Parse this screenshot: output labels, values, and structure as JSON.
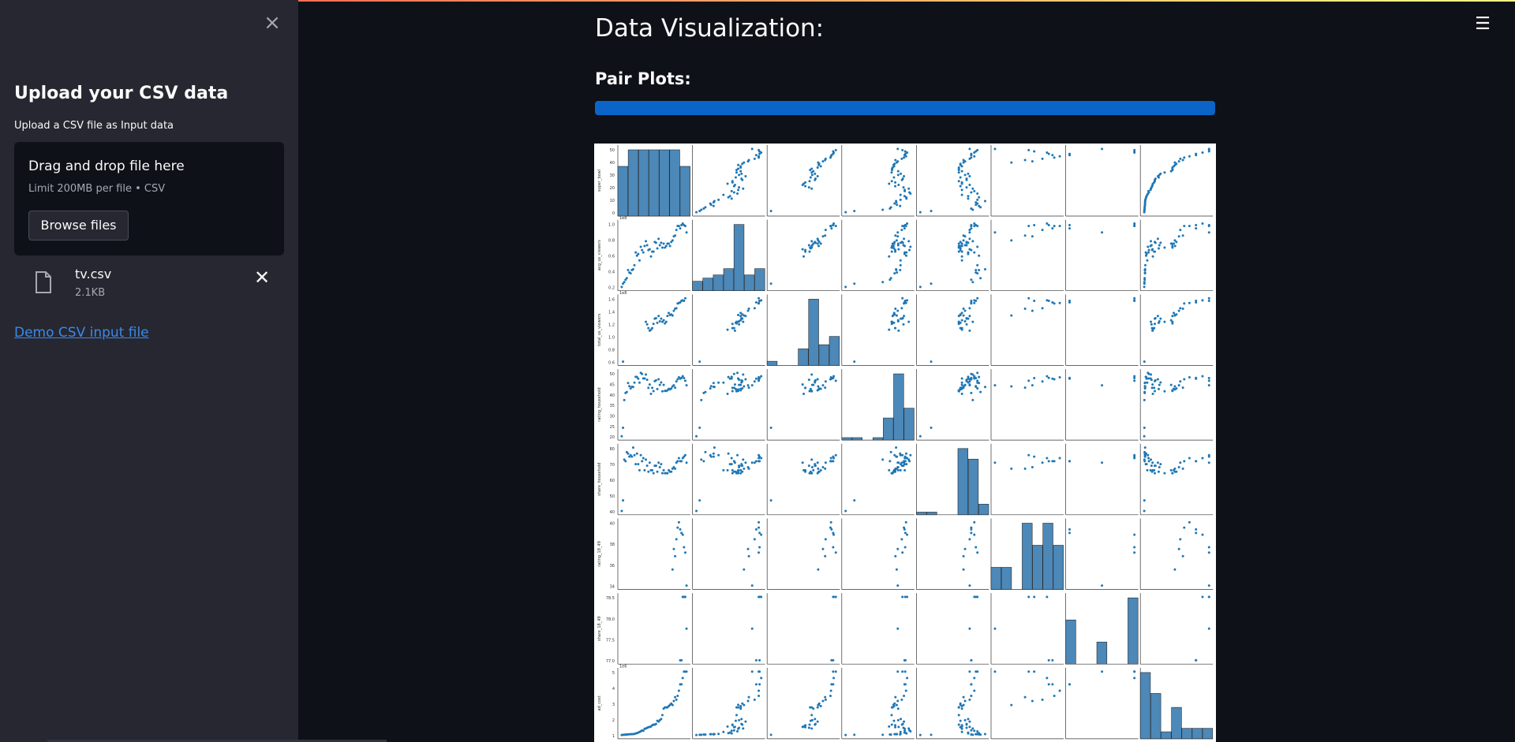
{
  "sidebar": {
    "title": "Upload your CSV data",
    "subtitle": "Upload a CSV file as Input data",
    "dropzone": {
      "title": "Drag and drop file here",
      "limit": "Limit 200MB per file • CSV",
      "browse_label": "Browse files"
    },
    "file": {
      "name": "tv.csv",
      "size": "2.1KB"
    },
    "demo_link": "Demo CSV input file",
    "close_icon": "close-icon",
    "file_icon": "file-icon",
    "remove_icon": "close-icon"
  },
  "header": {
    "menu_icon": "hamburger-menu-icon"
  },
  "main": {
    "title": "Data Visualization:",
    "subheader": "Pair Plots:",
    "progress": 1.0
  },
  "colors": {
    "app_bg": "#0e1117",
    "sidebar_bg": "#262730",
    "progress": "#0b65c8",
    "link": "#3c89e8",
    "plot_points": "#1f77b4"
  },
  "chart_data": {
    "type": "scatter",
    "title": "",
    "subtype": "pairplot",
    "variables": [
      "super_bowl",
      "avg_us_viewers",
      "total_us_viewers",
      "rating_household",
      "share_household",
      "rating_18_49",
      "share_18_49",
      "ad_cost"
    ],
    "y_ticks": [
      [
        "0",
        "10",
        "20",
        "30",
        "40",
        "50"
      ],
      [
        "0.2",
        "0.4",
        "0.6",
        "0.8",
        "1.0"
      ],
      [
        "0.6",
        "0.8",
        "1.0",
        "1.2",
        "1.4",
        "1.6"
      ],
      [
        "20",
        "25",
        "30",
        "35",
        "40",
        "45",
        "50"
      ],
      [
        "40",
        "50",
        "60",
        "70",
        "80"
      ],
      [
        "34",
        "36",
        "38",
        "40"
      ],
      [
        "77.0",
        "77.5",
        "78.0",
        "78.5"
      ],
      [
        "1",
        "2",
        "3",
        "4",
        "5"
      ]
    ],
    "y_offsets": [
      "",
      "1e8",
      "1e8",
      "",
      "",
      "",
      "",
      "1e6"
    ],
    "data": [
      [
        1,
        35000000.0,
        null,
        18.5,
        36,
        null,
        null,
        42500
      ],
      [
        2,
        39000000.0,
        51000000.0,
        22.6,
        43,
        null,
        null,
        54500
      ],
      [
        3,
        41000000.0,
        null,
        36,
        70,
        null,
        null,
        55000
      ],
      [
        4,
        44000000.0,
        null,
        39.4,
        69,
        null,
        null,
        78200
      ],
      [
        5,
        46000000.0,
        null,
        39.9,
        75,
        null,
        null,
        72500
      ],
      [
        6,
        56000000.0,
        null,
        44.2,
        74,
        null,
        null,
        86100
      ],
      [
        7,
        53000000.0,
        null,
        42.7,
        72,
        null,
        null,
        103500
      ],
      [
        8,
        52000000.0,
        null,
        41.6,
        73,
        null,
        null,
        103500
      ],
      [
        9,
        56000000.0,
        null,
        42.4,
        72,
        null,
        null,
        107000
      ],
      [
        10,
        57000000.0,
        null,
        42.3,
        78,
        null,
        null,
        110000
      ],
      [
        11,
        62000000.0,
        null,
        44.4,
        73,
        null,
        null,
        125000
      ],
      [
        12,
        78000000.0,
        null,
        47.2,
        67,
        null,
        null,
        162300
      ],
      [
        13,
        74000000.0,
        null,
        47.1,
        74,
        null,
        null,
        185000
      ],
      [
        14,
        76000000.0,
        null,
        46.3,
        67,
        null,
        null,
        222000
      ],
      [
        15,
        68000000.0,
        null,
        44.4,
        63,
        null,
        null,
        275000
      ],
      [
        16,
        85000000.0,
        null,
        49.1,
        73,
        null,
        null,
        324300
      ],
      [
        17,
        81000000.0,
        null,
        48.6,
        69,
        null,
        null,
        400000
      ],
      [
        18,
        78000000.0,
        null,
        46.4,
        71,
        null,
        null,
        368200
      ],
      [
        19,
        86000000.0,
        null,
        46.4,
        63,
        null,
        null,
        525000
      ],
      [
        20,
        92000000.0,
        127000000.0,
        48.3,
        70,
        null,
        null,
        550000
      ],
      [
        21,
        87000000.0,
        122000000.0,
        45.8,
        66,
        null,
        null,
        600000
      ],
      [
        22,
        81000000.0,
        115000000.0,
        41.9,
        62,
        null,
        null,
        645000
      ],
      [
        23,
        82000000.0,
        110000000.0,
        43.5,
        68,
        null,
        null,
        675000
      ],
      [
        24,
        73000000.0,
        112000000.0,
        39,
        63,
        null,
        null,
        700400
      ],
      [
        25,
        79000000.0,
        115000000.0,
        41.9,
        63,
        null,
        null,
        800000
      ],
      [
        26,
        79000000.0,
        123000000.0,
        40.3,
        61,
        null,
        null,
        850000
      ],
      [
        27,
        91000000.0,
        133000000.0,
        45.1,
        66,
        null,
        null,
        850000
      ],
      [
        28,
        90000000.0,
        134000000.0,
        45.5,
        66,
        null,
        null,
        900000
      ],
      [
        29,
        83000000.0,
        125000000.0,
        41.3,
        62,
        null,
        null,
        1150000
      ],
      [
        30,
        95000000.0,
        138000000.0,
        46,
        68,
        null,
        null,
        1085000
      ],
      [
        31,
        87000000.0,
        128000000.0,
        43.3,
        65,
        null,
        null,
        1200000
      ],
      [
        32,
        90000000.0,
        133000000.0,
        44.5,
        67,
        null,
        null,
        1291100
      ],
      [
        33,
        84000000.0,
        127000000.0,
        40.2,
        61,
        null,
        null,
        1600000
      ],
      [
        34,
        89000000.0,
        130000000.0,
        43.3,
        63,
        null,
        null,
        2100000
      ],
      [
        35,
        84000000.0,
        124000000.0,
        40.4,
        61,
        null,
        null,
        2200000
      ],
      [
        36,
        86000000.0,
        127000000.0,
        40.4,
        61,
        null,
        null,
        2200000
      ],
      [
        37,
        89000000.0,
        138000000.0,
        40.7,
        61,
        null,
        null,
        2200000
      ],
      [
        38,
        89000000.0,
        144000000.0,
        41.4,
        63,
        null,
        null,
        2302200
      ],
      [
        39,
        86000000.0,
        140000000.0,
        41.1,
        62,
        null,
        null,
        2400000
      ],
      [
        40,
        91000000.0,
        141000000.0,
        41.6,
        62,
        null,
        null,
        2500000
      ],
      [
        41,
        93000000.0,
        139000000.0,
        42.6,
        64,
        35.2,
        null,
        2385365
      ],
      [
        42,
        98000000.0,
        148000000.0,
        43.1,
        65,
        37.5,
        null,
        2699963
      ],
      [
        43,
        99000000.0,
        152000000.0,
        42.0,
        64,
        36.7,
        null,
        3000000
      ],
      [
        44,
        106000000.0,
        153000000.0,
        45.0,
        68,
        38.6,
        null,
        2800000
      ],
      [
        45,
        111000000.0,
        162000000.0,
        46.0,
        69,
        39.9,
        null,
        3100000
      ],
      [
        46,
        111000000.0,
        163000000.0,
        47.0,
        71,
        40.5,
        null,
        3500000
      ],
      [
        47,
        108000000.0,
        164000000.0,
        46.3,
        69,
        39.7,
        77,
        4000000
      ],
      [
        48,
        112000000.0,
        167000000.0,
        46.7,
        69,
        39.3,
        77,
        4000000
      ],
      [
        49,
        114000000.0,
        168000000.0,
        47.5,
        71,
        39.1,
        79,
        4500000
      ],
      [
        50,
        112000000.0,
        167000000.0,
        46.6,
        72,
        37.7,
        79,
        5000000
      ],
      [
        51,
        111000000.0,
        172000000.0,
        45.3,
        73,
        37.1,
        79,
        5000000
      ],
      [
        52,
        103000000.0,
        null,
        43.1,
        68,
        33.4,
        78,
        5000000
      ]
    ]
  }
}
